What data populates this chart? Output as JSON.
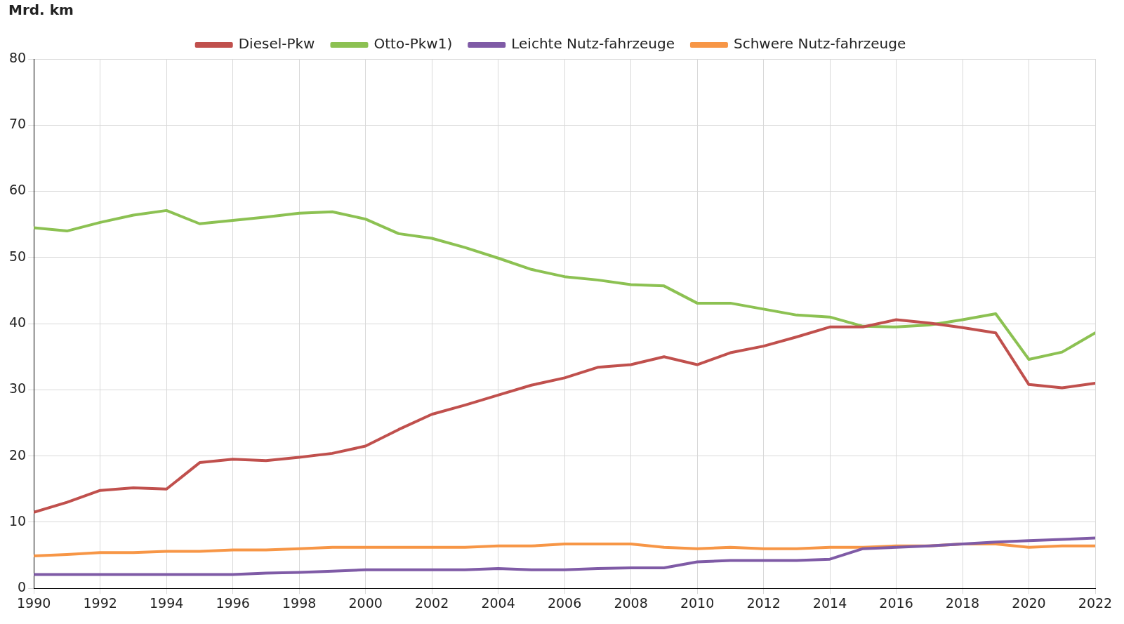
{
  "chart_data": {
    "type": "line",
    "ylabel": "Mrd. km",
    "x": [
      1990,
      1991,
      1992,
      1993,
      1994,
      1995,
      1996,
      1997,
      1998,
      1999,
      2000,
      2001,
      2002,
      2003,
      2004,
      2005,
      2006,
      2007,
      2008,
      2009,
      2010,
      2011,
      2012,
      2013,
      2014,
      2015,
      2016,
      2017,
      2018,
      2019,
      2020,
      2021,
      2022
    ],
    "series": [
      {
        "name": "Diesel-Pkw",
        "color": "#c0504d",
        "values": [
          11.5,
          13,
          14.8,
          15.2,
          15,
          19,
          19.5,
          19.3,
          19.8,
          20.4,
          21.5,
          24,
          26.3,
          27.7,
          29.2,
          30.7,
          31.8,
          33.4,
          33.8,
          35,
          33.8,
          35.6,
          36.6,
          38,
          39.5,
          39.5,
          40.6,
          40.1,
          39.4,
          38.6,
          30.8,
          30.3,
          31
        ]
      },
      {
        "name": "Otto-Pkw1)",
        "color": "#8cc152",
        "values": [
          54.5,
          54,
          55.3,
          56.4,
          57.1,
          55.1,
          55.6,
          56.1,
          56.7,
          56.9,
          55.8,
          53.6,
          52.9,
          51.5,
          49.9,
          48.2,
          47.1,
          46.6,
          45.9,
          45.7,
          43.1,
          43.1,
          42.2,
          41.3,
          41,
          39.6,
          39.5,
          39.8,
          40.6,
          41.5,
          34.6,
          35.7,
          38.6
        ]
      },
      {
        "name": "Leichte Nutz-fahrzeuge",
        "color": "#7f5ba6",
        "values": [
          2.1,
          2.1,
          2.1,
          2.1,
          2.1,
          2.1,
          2.1,
          2.3,
          2.4,
          2.6,
          2.8,
          2.8,
          2.8,
          2.8,
          3,
          2.8,
          2.8,
          3,
          3.1,
          3.1,
          4,
          4.2,
          4.2,
          4.2,
          4.4,
          6,
          6.2,
          6.4,
          6.7,
          7,
          7.2,
          7.4,
          7.6
        ]
      },
      {
        "name": "Schwere Nutz-fahrzeuge",
        "color": "#f79646",
        "values": [
          4.9,
          5.1,
          5.4,
          5.4,
          5.6,
          5.6,
          5.8,
          5.8,
          6,
          6.2,
          6.2,
          6.2,
          6.2,
          6.2,
          6.4,
          6.4,
          6.7,
          6.7,
          6.7,
          6.2,
          6,
          6.2,
          6,
          6,
          6.2,
          6.2,
          6.4,
          6.4,
          6.7,
          6.7,
          6.2,
          6.4,
          6.4
        ]
      }
    ],
    "xlim": [
      1990,
      2022
    ],
    "xticks": [
      1990,
      1992,
      1994,
      1996,
      1998,
      2000,
      2002,
      2004,
      2006,
      2008,
      2010,
      2012,
      2014,
      2016,
      2018,
      2020,
      2022
    ],
    "ylim": [
      0,
      80
    ],
    "yticks": [
      0,
      10,
      20,
      30,
      40,
      50,
      60,
      70,
      80
    ],
    "grid": true,
    "legend": "top",
    "marker": "none",
    "line_style": "solid"
  }
}
